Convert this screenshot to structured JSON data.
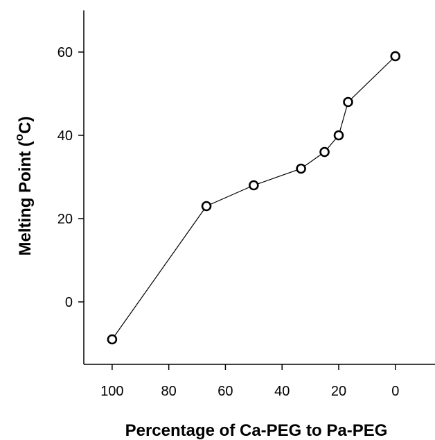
{
  "chart_data": {
    "type": "line",
    "title": "",
    "xlabel": "Percentage of Ca-PEG to Pa-PEG",
    "ylabel_prefix": "Melting Point (",
    "ylabel_sup": "o",
    "ylabel_suffix": "C)",
    "x_reversed": true,
    "xlim": [
      110,
      -14
    ],
    "ylim": [
      -15,
      70
    ],
    "x_ticks": [
      100,
      80,
      60,
      40,
      20,
      0
    ],
    "y_ticks": [
      0,
      20,
      40,
      60
    ],
    "grid": false,
    "legend": "none",
    "marker": "open-circle",
    "line_color": "#000000",
    "series": [
      {
        "x": [
          100,
          66.7,
          50,
          33.3,
          25,
          20,
          16.7,
          0
        ],
        "y": [
          -9,
          23,
          28,
          32,
          36,
          40,
          48,
          59
        ]
      }
    ]
  }
}
